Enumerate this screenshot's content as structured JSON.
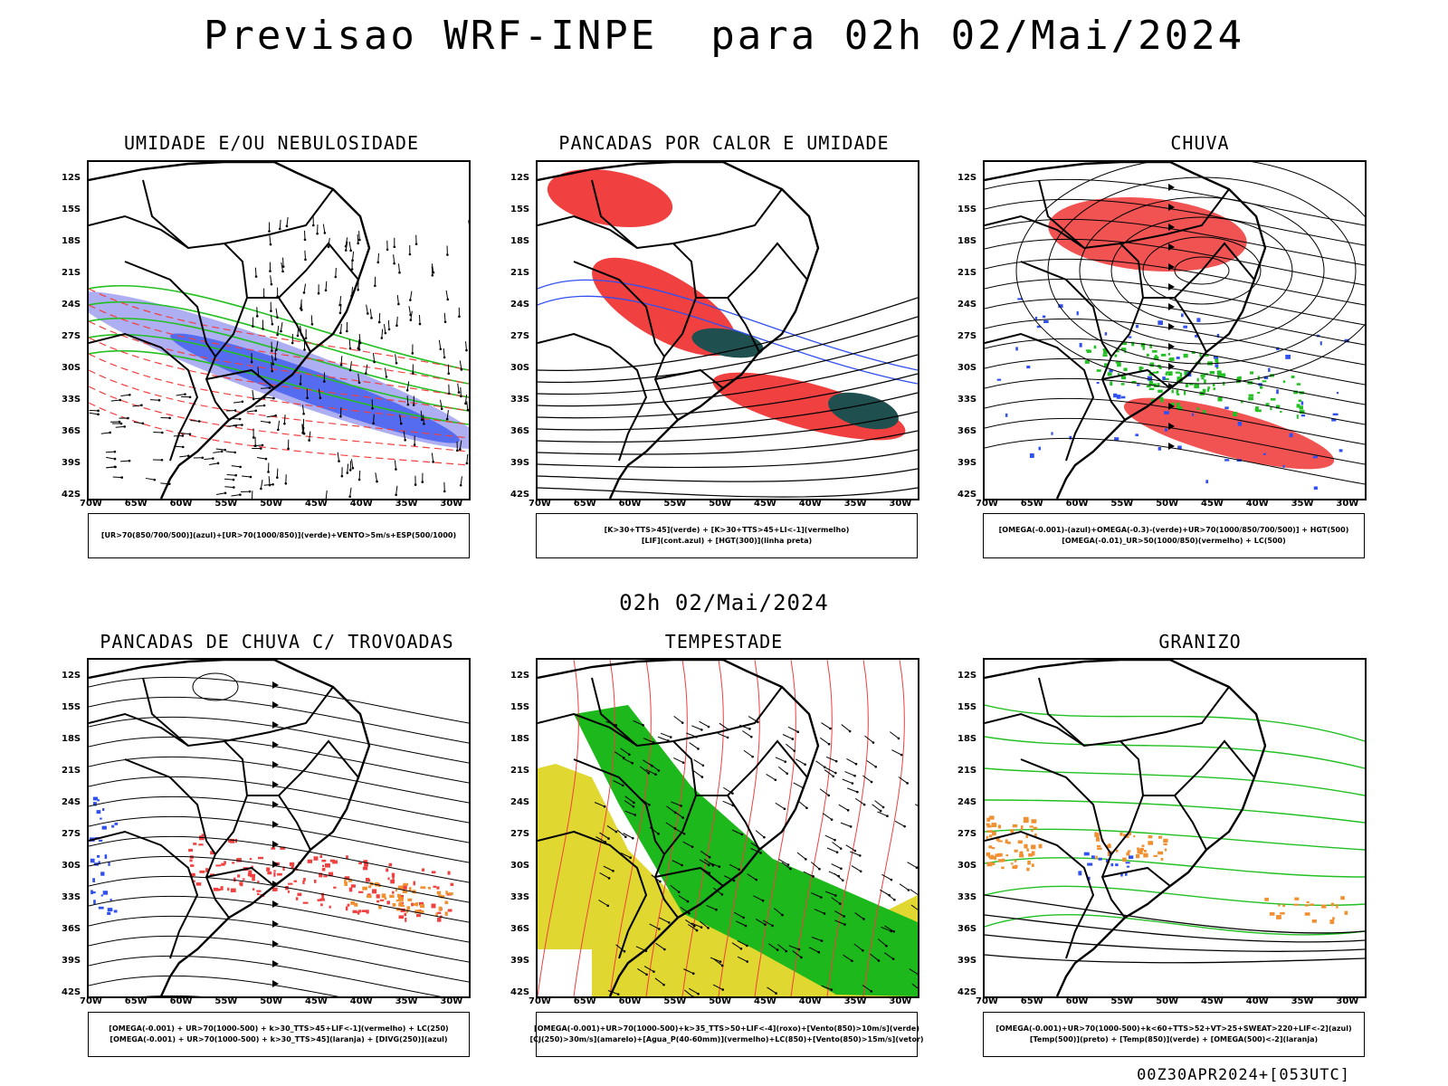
{
  "title": "Previsao WRF-INPE  para 02h 02/Mai/2024",
  "mid_label": "02h 02/Mai/2024",
  "footer": "00Z30APR2024+[053UTC]",
  "lat_labels": [
    "12S",
    "15S",
    "18S",
    "21S",
    "24S",
    "27S",
    "30S",
    "33S",
    "36S",
    "39S",
    "42S"
  ],
  "lon_labels": [
    "70W",
    "65W",
    "60W",
    "55W",
    "50W",
    "45W",
    "40W",
    "35W",
    "30W"
  ],
  "panels": [
    {
      "title": "UMIDADE E/OU NEBULOSIDADE",
      "legend": [
        "[UR>70(850/700/500)](azul)+[UR>70(1000/850)](verde)+VENTO>5m/s+ESP(500/1000)"
      ]
    },
    {
      "title": "PANCADAS POR CALOR E UMIDADE",
      "legend": [
        "[K>30+TTS>45](verde) + [K>30+TTS>45+LI<-1](vermelho)",
        "[LIF](cont.azul) + [HGT(300)](linha preta)"
      ]
    },
    {
      "title": "CHUVA",
      "legend": [
        "[OMEGA(-0.001)-(azul)+OMEGA(-0.3)-(verde)+UR>70(1000/850/700/500)] + HGT(500)",
        "[OMEGA(-0.01)_UR>50(1000/850)(vermelho) + LC(500)"
      ]
    },
    {
      "title": "PANCADAS DE CHUVA C/ TROVOADAS",
      "legend": [
        "[OMEGA(-0.001) + UR>70(1000-500) + k>30_TTS>45+LIF<-1](vermelho) + LC(250)",
        "[OMEGA(-0.001) + UR>70(1000-500) + k>30_TTS>45](laranja) + [DIVG(250)](azul)"
      ]
    },
    {
      "title": "TEMPESTADE",
      "legend": [
        "[OMEGA(-0.001)+UR>70(1000-500)+k>35_TTS>50+LIF<-4](roxo)+[Vento(850)>10m/s](verde)",
        "[CJ(250)>30m/s](amarelo)+[Agua_P(40-60mm)](vermelho)+LC(850)+[Vento(850)>15m/s](vetor)"
      ]
    },
    {
      "title": "GRANIZO",
      "legend": [
        "[OMEGA(-0.001)+UR>70(1000-500)+k<60+TTS>52+VT>25+SWEAT>220+LIF<-2](azul)",
        "[Temp(500)](preto) + [Temp(850)](verde) + [OMEGA(500)<-2](laranja)"
      ]
    }
  ],
  "colors": {
    "red": "#f04040",
    "green": "#22c022",
    "blue": "#3050f0",
    "lavender": "#a0a0f0",
    "yellow": "#e0d830",
    "orange": "#f09030",
    "dark_teal": "#1f4f4f",
    "purple": "#a030c0"
  }
}
